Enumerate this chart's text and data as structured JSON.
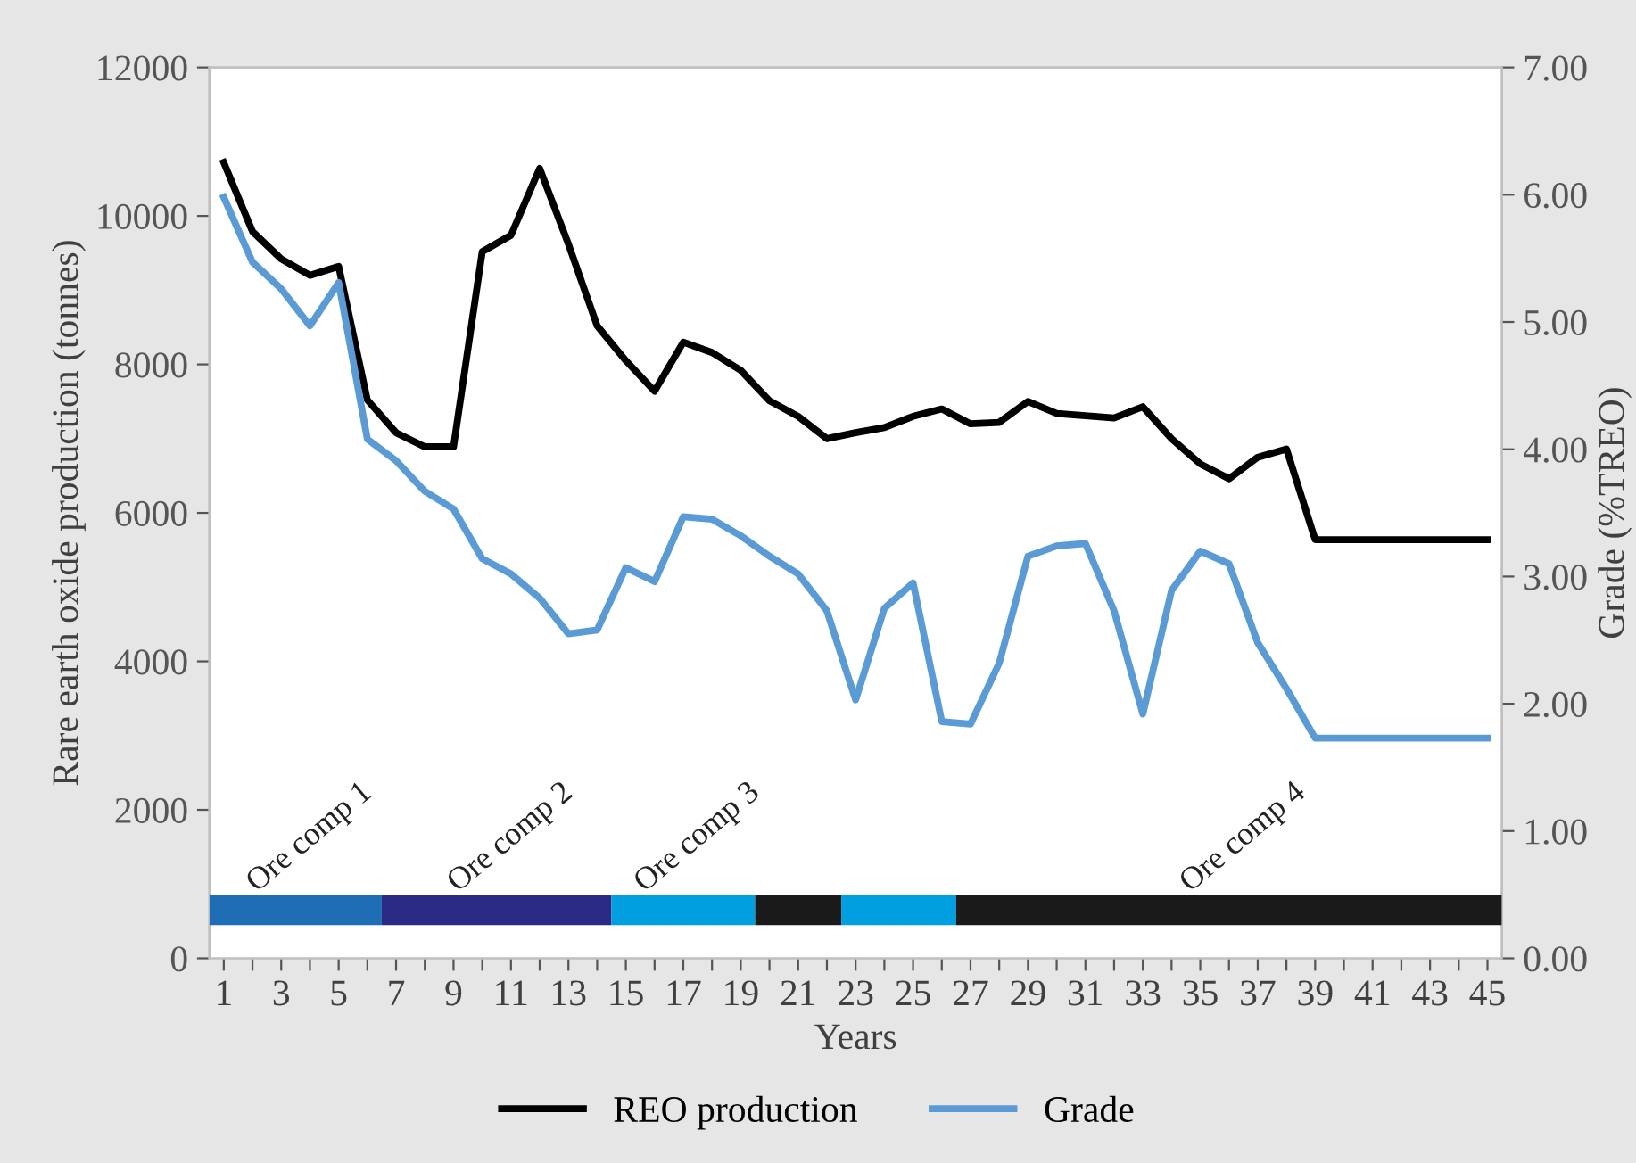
{
  "chart_data": [
    {
      "type": "line",
      "xlabel": "Years",
      "ylabel": "Rare earth oxide production (tonnes)",
      "y2label": "Grade (%TREO)",
      "x": [
        1,
        2,
        3,
        4,
        5,
        6,
        7,
        8,
        9,
        10,
        11,
        12,
        13,
        14,
        15,
        16,
        17,
        18,
        19,
        20,
        21,
        22,
        23,
        24,
        25,
        26,
        27,
        28,
        29,
        30,
        31,
        32,
        33,
        34,
        35,
        36,
        37,
        38,
        39,
        40,
        41,
        42,
        43,
        44,
        45
      ],
      "xlim": [
        0.5,
        45.5
      ],
      "xticks": [
        1,
        {
          "value": 2,
          "label": null
        },
        3,
        {
          "value": 4,
          "label": null
        },
        5,
        {
          "value": 6,
          "label": null
        },
        7,
        {
          "value": 8,
          "label": null
        },
        9,
        {
          "value": 10,
          "label": null
        },
        11,
        {
          "value": 12,
          "label": null
        },
        13,
        {
          "value": 14,
          "label": null
        },
        15,
        {
          "value": 16,
          "label": null
        },
        17,
        {
          "value": 18,
          "label": null
        },
        19,
        {
          "value": 20,
          "label": null
        },
        21,
        {
          "value": 22,
          "label": null
        },
        23,
        {
          "value": 24,
          "label": null
        },
        25,
        {
          "value": 26,
          "label": null
        },
        27,
        {
          "value": 28,
          "label": null
        },
        29,
        {
          "value": 30,
          "label": null
        },
        31,
        {
          "value": 32,
          "label": null
        },
        33,
        {
          "value": 34,
          "label": null
        },
        35,
        {
          "value": 36,
          "label": null
        },
        37,
        {
          "value": 38,
          "label": null
        },
        39,
        {
          "value": 40,
          "label": null
        },
        41,
        {
          "value": 42,
          "label": null
        },
        43,
        {
          "value": 44,
          "label": null
        },
        45
      ],
      "ylim": [
        0,
        12000
      ],
      "yticks": [
        0,
        2000,
        4000,
        6000,
        8000,
        10000,
        12000
      ],
      "y2lim": [
        0,
        7
      ],
      "y2ticks": [
        {
          "value": 0,
          "label": "0.00"
        },
        {
          "value": 1,
          "label": "1.00"
        },
        {
          "value": 2,
          "label": "2.00"
        },
        {
          "value": 3,
          "label": "3.00"
        },
        {
          "value": 4,
          "label": "4.00"
        },
        {
          "value": 5,
          "label": "5.00"
        },
        {
          "value": 6,
          "label": "6.00"
        },
        {
          "value": 7,
          "label": "7.00"
        }
      ],
      "series": [
        {
          "name": "REO production",
          "color": "#000000",
          "values": [
            10720,
            9790,
            9420,
            9200,
            9320,
            7520,
            7080,
            6890,
            6890,
            9520,
            9740,
            10640,
            9620,
            8520,
            8050,
            7640,
            8300,
            8160,
            7920,
            7510,
            7300,
            7000,
            7080,
            7150,
            7300,
            7400,
            7200,
            7220,
            7500,
            7340,
            7310,
            7280,
            7430,
            7000,
            6660,
            6460,
            6750,
            6860,
            5640,
            5640,
            5640,
            5640,
            5640,
            5640,
            5640
          ]
        },
        {
          "name": "Grade",
          "color": "#5b9bd5",
          "axis": "y2",
          "values": [
            5.98,
            5.47,
            5.26,
            4.97,
            5.31,
            4.08,
            3.91,
            3.67,
            3.53,
            3.14,
            3.02,
            2.83,
            2.55,
            2.58,
            3.07,
            2.96,
            3.47,
            3.45,
            3.32,
            3.16,
            3.02,
            2.73,
            2.03,
            2.75,
            2.95,
            1.86,
            1.84,
            2.32,
            3.16,
            3.24,
            3.26,
            2.73,
            1.92,
            2.89,
            3.2,
            3.1,
            2.48,
            2.12,
            1.73,
            1.73,
            1.73,
            1.73,
            1.73,
            1.73,
            1.73
          ]
        }
      ],
      "grid": false,
      "legend": "bottom",
      "marker": "none",
      "line_style": "solid"
    },
    {
      "type": "bar",
      "orientation": "horizontal",
      "categories": [
        null
      ],
      "xlim": [
        0.5,
        45.5
      ],
      "tick_labels": false,
      "series": [
        {
          "name": "Ore comp 1",
          "color": "#1f6db5",
          "base": [
            0.5
          ],
          "values": [
            6
          ]
        },
        {
          "name": "Ore comp 2",
          "color": "#2b2a85",
          "base": [
            6.5
          ],
          "values": [
            8
          ]
        },
        {
          "name": "Ore comp 3",
          "color": "#00a0e0",
          "base": [
            14.5
          ],
          "values": [
            5
          ]
        },
        {
          "color": "#1a1a1a",
          "base": [
            19.5
          ],
          "values": [
            3
          ]
        },
        {
          "color": "#00a0e0",
          "base": [
            22.5
          ],
          "values": [
            4
          ]
        },
        {
          "name": "Ore comp 4",
          "color": "#1a1a1a",
          "base": [
            26.5
          ],
          "values": [
            19
          ]
        }
      ]
    }
  ]
}
